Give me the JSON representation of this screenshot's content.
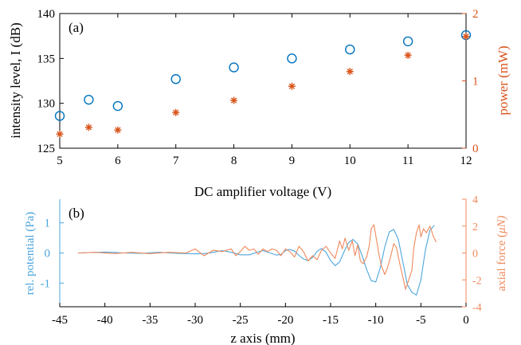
{
  "chart_data": [
    {
      "type": "scatter",
      "panel_label": "(a)",
      "xlabel": "DC amplifier voltage (V)",
      "ylabel_left": "intensity level, I (dB)",
      "ylabel_right": "power (mW)",
      "xlim": [
        5,
        12
      ],
      "ylim_left": [
        125,
        140
      ],
      "ylim_right": [
        0,
        2
      ],
      "xticks": [
        "5",
        "6",
        "7",
        "8",
        "9",
        "10",
        "11",
        "12"
      ],
      "yticks_left": [
        "125",
        "130",
        "135",
        "140"
      ],
      "yticks_right": [
        "0",
        "1",
        "2"
      ],
      "grid": false,
      "legend": "none",
      "series": [
        {
          "axis": "left",
          "marker": "circle-open",
          "color": "#0072BD",
          "x": [
            5,
            5.5,
            6,
            7,
            8,
            9,
            10,
            11,
            12
          ],
          "y": [
            128.6,
            130.4,
            129.7,
            132.7,
            134.0,
            135.0,
            136.0,
            136.9,
            137.6
          ]
        },
        {
          "axis": "right",
          "marker": "asterisk",
          "color": "#D95319",
          "x": [
            5,
            5.5,
            6,
            7,
            8,
            9,
            10,
            11,
            12
          ],
          "y": [
            0.21,
            0.31,
            0.27,
            0.53,
            0.71,
            0.92,
            1.14,
            1.38,
            1.66
          ]
        }
      ]
    },
    {
      "type": "line",
      "panel_label": "(b)",
      "xlabel": "z axis (mm)",
      "ylabel_left": "rel. potential (Pa)",
      "ylabel_right": "axial force (",
      "ylabel_right_unit": "μN)",
      "xlim": [
        -45,
        0
      ],
      "ylim_left": [
        -1.6,
        1.6
      ],
      "ylim_right": [
        -4,
        4
      ],
      "xticks": [
        "-45",
        "-40",
        "-35",
        "-30",
        "-25",
        "-20",
        "-15",
        "-10",
        "-5",
        "0"
      ],
      "yticks_left": [
        "-1",
        "0",
        "1"
      ],
      "yticks_right": [
        "-4",
        "-2",
        "0",
        "2",
        "4"
      ],
      "grid": false,
      "legend": "none",
      "series": [
        {
          "axis": "left",
          "color": "#4DA6DC",
          "x": [
            -43,
            -41,
            -40,
            -39,
            -38,
            -36,
            -34,
            -32,
            -30,
            -29,
            -28,
            -27,
            -26,
            -25,
            -24,
            -23,
            -22.5,
            -22,
            -21,
            -20.5,
            -20,
            -19.5,
            -19,
            -18.5,
            -18,
            -17.5,
            -17,
            -16.5,
            -16,
            -15.5,
            -15,
            -14.5,
            -14,
            -13.5,
            -13,
            -12.5,
            -12,
            -11.5,
            -11,
            -10.5,
            -10,
            -9.5,
            -9,
            -8.5,
            -8,
            -7.5,
            -7,
            -6.5,
            -6,
            -5.5,
            -5,
            -4.5,
            -4,
            -3.5
          ],
          "y": [
            0,
            0.02,
            0.03,
            0.02,
            0,
            -0.01,
            0.02,
            -0.01,
            -0.03,
            -0.02,
            0.02,
            0.08,
            0.02,
            -0.06,
            -0.06,
            0.04,
            0.08,
            0.03,
            -0.07,
            -0.05,
            0.08,
            0.12,
            0.06,
            -0.08,
            -0.2,
            -0.25,
            -0.15,
            0.05,
            0.15,
            0.02,
            -0.25,
            -0.42,
            -0.3,
            0.05,
            0.35,
            0.45,
            0.3,
            -0.1,
            -0.55,
            -0.92,
            -0.96,
            -0.5,
            0.2,
            0.7,
            0.78,
            0.45,
            -0.3,
            -1.05,
            -1.3,
            -1.4,
            -0.9,
            0.1,
            0.75,
            0.92
          ]
        },
        {
          "axis": "right",
          "color": "#F08A5D",
          "x": [
            -43,
            -41,
            -39,
            -37,
            -35,
            -33,
            -31,
            -30,
            -29,
            -28,
            -27,
            -26,
            -25.5,
            -25,
            -24.5,
            -24,
            -23.5,
            -23,
            -22.5,
            -22,
            -21.5,
            -21,
            -20.5,
            -20,
            -19.5,
            -19,
            -18.5,
            -18,
            -17.5,
            -17,
            -16.5,
            -16,
            -15.5,
            -15,
            -14.5,
            -14,
            -13.7,
            -13.4,
            -13,
            -12.6,
            -12.3,
            -12,
            -11.7,
            -11.4,
            -11,
            -10.7,
            -10.5,
            -10.2,
            -10,
            -9.7,
            -9.4,
            -9,
            -8.7,
            -8.4,
            -8,
            -7.7,
            -7.4,
            -7,
            -6.7,
            -6.4,
            -6,
            -5.8,
            -5.5,
            -5.2,
            -5,
            -4.7,
            -4.4,
            -4,
            -3.6,
            -3.3
          ],
          "y": [
            0,
            0.05,
            -0.05,
            0.05,
            -0.05,
            0.05,
            0,
            0.3,
            -0.2,
            0.2,
            0.1,
            0.3,
            -0.2,
            0.1,
            0.5,
            0.2,
            0.3,
            -0.1,
            0.3,
            0.1,
            0.3,
            0.2,
            -0.2,
            0.3,
            0.1,
            -0.3,
            0.5,
            0.1,
            -0.6,
            -0.2,
            -0.5,
            0.2,
            0.5,
            0.0,
            -0.4,
            0.9,
            0.3,
            1.1,
            0.2,
            0.9,
            -0.2,
            0.6,
            -0.6,
            -0.8,
            -0.3,
            0.6,
            1.8,
            2.1,
            1.3,
            0.1,
            -0.9,
            -1.6,
            -1.1,
            -0.4,
            0.7,
            0.4,
            -0.6,
            -1.8,
            -2.7,
            -2.1,
            -1.3,
            0.3,
            1.5,
            2.1,
            1.2,
            1.8,
            1.5,
            2.0,
            1.2,
            0.8
          ]
        }
      ]
    }
  ]
}
